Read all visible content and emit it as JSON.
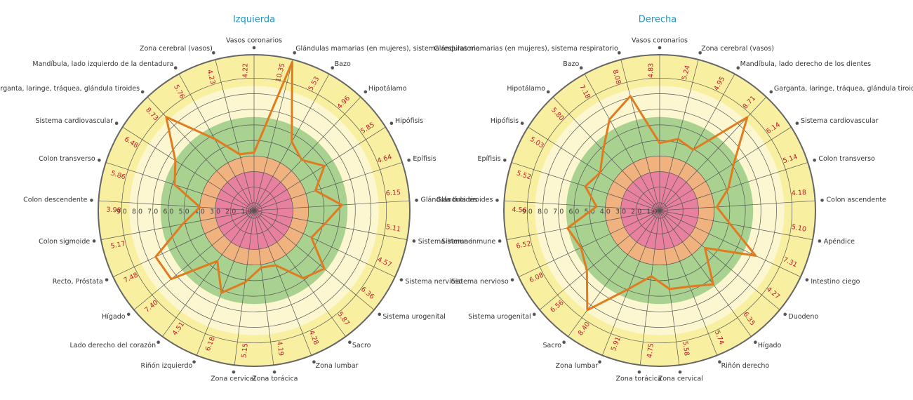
{
  "chart_data": [
    {
      "type": "radar",
      "title": "Izquierda",
      "categories": [
        "Vasos coronarios",
        "Glándulas mamarias (en mujeres), sistema respiratorio",
        "Bazo",
        "Hipotálamo",
        "Hipófisis",
        "Epífisis",
        "Glándula tiroides",
        "Sistema inmune",
        "Sistema nervioso",
        "Sistema urogenital",
        "Sacro",
        "Zona lumbar",
        "Zona torácica",
        "Zona cervical",
        "Riñón izquierdo",
        "Lado derecho del corazón",
        "Hígado",
        "Recto, Próstata",
        "Colon sigmoide",
        "Colon descendente",
        "Colon transverso",
        "Sistema cardiovascular",
        "Garganta, laringe, tráquea, glándula tiroides",
        "Mandíbula, lado izquierdo de la dentadura",
        "Zona cerebral (vasos)"
      ],
      "values": [
        4.22,
        10.35,
        5.53,
        4.96,
        5.85,
        4.64,
        6.15,
        5.11,
        4.57,
        6.36,
        5.87,
        4.28,
        4.19,
        5.15,
        6.18,
        4.51,
        7.4,
        7.48,
        5.17,
        3.98,
        5.86,
        6.48,
        8.73,
        5.76,
        4.23
      ],
      "value_labels": [
        "4.22",
        "10.35",
        "5.53",
        "4.96",
        "5.85",
        "4.64",
        "6.15",
        "5.11",
        "4.57",
        "6.36",
        "5.87",
        "4.28",
        "4.19",
        "5.15",
        "6.18",
        "4.51",
        "7.40",
        "7.48",
        "5.17",
        "3.98",
        "5.86",
        "6.48",
        "8.73",
        "5.76",
        "4.23"
      ],
      "color": "#e07b20",
      "rlim": [
        0.5,
        10.5
      ],
      "rticks": [
        {
          "value": 1,
          "label": "1.0"
        },
        {
          "value": 2,
          "label": "2.0"
        },
        {
          "value": 3,
          "label": "3.0"
        },
        {
          "value": 4,
          "label": "4.0"
        },
        {
          "value": 5,
          "label": "5.0"
        },
        {
          "value": 6,
          "label": "6.0"
        },
        {
          "value": 7,
          "label": "7.0"
        },
        {
          "value": 8,
          "label": "8.0"
        },
        {
          "value": 9,
          "label": "9.0"
        }
      ],
      "bands": [
        {
          "range": [
            8.5,
            10.5
          ],
          "color": "#f8f0a0"
        },
        {
          "range": [
            6.5,
            8.5
          ],
          "color": "#fcf7d0"
        },
        {
          "range": [
            4,
            6.5
          ],
          "color": "#a9d190"
        },
        {
          "range": [
            3,
            4
          ],
          "color": "#f0b27e"
        },
        {
          "range": [
            0.5,
            3
          ],
          "color": "#e880a0"
        }
      ]
    },
    {
      "type": "radar",
      "title": "Derecha",
      "categories": [
        "Vasos coronarios",
        "Zona cerebral (vasos)",
        "Mandíbula, lado derecho de los dientes",
        "Garganta, laringe, tráquea, glándula tiroides",
        "Sistema cardiovascular",
        "Colon transverso",
        "Colon ascendente",
        "Apéndice",
        "Intestino ciego",
        "Duodeno",
        "Hígado",
        "Riñón derecho",
        "Zona cervical",
        "Zona torácica",
        "Zona lumbar",
        "Sacro",
        "Sistema urogenital",
        "Sistema nervioso",
        "Sistema inmune",
        "Glándula tiroides",
        "Epífisis",
        "Hipófisis",
        "Hipotálamo",
        "Bazo",
        "Glándulas mamarias (en mujeres), sistema respiratorio"
      ],
      "values": [
        4.83,
        5.24,
        4.95,
        8.71,
        6.14,
        5.14,
        4.18,
        5.1,
        7.31,
        4.27,
        6.35,
        5.74,
        5.58,
        4.75,
        5.91,
        8.4,
        6.56,
        6.08,
        6.52,
        4.56,
        5.52,
        5.03,
        5.8,
        7.18,
        8.08
      ],
      "value_labels": [
        "4.83",
        "5.24",
        "4.95",
        "8.71",
        "6.14",
        "5.14",
        "4.18",
        "5.10",
        "7.31",
        "4.27",
        "6.35",
        "5.74",
        "5.58",
        "4.75",
        "5.91",
        "8.40",
        "6.56",
        "6.08",
        "6.52",
        "4.56",
        "5.52",
        "5.03",
        "5.80",
        "7.18",
        "8.08"
      ],
      "color": "#e07b20",
      "rlim": [
        0.5,
        10.5
      ],
      "rticks": [
        {
          "value": 1,
          "label": "1.0"
        },
        {
          "value": 2,
          "label": "2.0"
        },
        {
          "value": 3,
          "label": "3.0"
        },
        {
          "value": 4,
          "label": "4.0"
        },
        {
          "value": 5,
          "label": "5.0"
        },
        {
          "value": 6,
          "label": "6.0"
        },
        {
          "value": 7,
          "label": "7.0"
        },
        {
          "value": 8,
          "label": "8.0"
        },
        {
          "value": 9,
          "label": "9.0"
        }
      ],
      "bands": [
        {
          "range": [
            8.5,
            10.5
          ],
          "color": "#f8f0a0"
        },
        {
          "range": [
            6.5,
            8.5
          ],
          "color": "#fcf7d0"
        },
        {
          "range": [
            4,
            6.5
          ],
          "color": "#a9d190"
        },
        {
          "range": [
            3,
            4
          ],
          "color": "#f0b27e"
        },
        {
          "range": [
            0.5,
            3
          ],
          "color": "#e880a0"
        }
      ]
    }
  ]
}
